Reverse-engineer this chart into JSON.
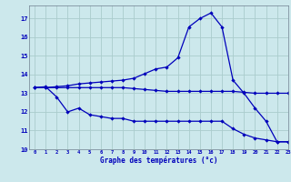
{
  "background_color": "#cce8ec",
  "grid_color": "#aacccc",
  "line_color": "#0000bb",
  "xlabel": "Graphe des températures (°c)",
  "xlim": [
    -0.5,
    23
  ],
  "ylim": [
    10,
    17.7
  ],
  "yticks": [
    10,
    11,
    12,
    13,
    14,
    15,
    16,
    17
  ],
  "xticks": [
    0,
    1,
    2,
    3,
    4,
    5,
    6,
    7,
    8,
    9,
    10,
    11,
    12,
    13,
    14,
    15,
    16,
    17,
    18,
    19,
    20,
    21,
    22,
    23
  ],
  "s1_x": [
    0,
    1,
    2,
    3,
    4,
    5,
    6,
    7,
    8,
    9,
    10,
    11,
    12,
    13,
    14,
    15,
    16,
    17,
    18,
    19,
    20,
    21,
    22,
    23
  ],
  "s1_y": [
    13.3,
    13.35,
    12.8,
    12.0,
    12.2,
    11.85,
    11.75,
    11.65,
    11.65,
    11.5,
    11.5,
    11.5,
    11.5,
    11.5,
    11.5,
    11.5,
    11.5,
    11.5,
    11.1,
    10.8,
    10.6,
    10.5,
    10.4,
    10.4
  ],
  "s2_x": [
    0,
    1,
    2,
    3,
    4,
    5,
    6,
    7,
    8,
    9,
    10,
    11,
    12,
    13,
    14,
    15,
    16,
    17,
    18,
    19,
    20,
    21,
    22,
    23
  ],
  "s2_y": [
    13.3,
    13.3,
    13.3,
    13.3,
    13.3,
    13.3,
    13.3,
    13.3,
    13.3,
    13.25,
    13.2,
    13.15,
    13.1,
    13.1,
    13.1,
    13.1,
    13.1,
    13.1,
    13.1,
    13.05,
    13.0,
    13.0,
    13.0,
    13.0
  ],
  "s3_x": [
    0,
    1,
    2,
    3,
    4,
    5,
    6,
    7,
    8,
    9,
    10,
    11,
    12,
    13,
    14,
    15,
    16,
    17,
    18,
    19,
    20,
    21,
    22,
    23
  ],
  "s3_y": [
    13.3,
    13.3,
    13.35,
    13.4,
    13.5,
    13.55,
    13.6,
    13.65,
    13.7,
    13.8,
    14.05,
    14.3,
    14.4,
    14.9,
    16.55,
    17.0,
    17.3,
    16.55,
    13.7,
    13.0,
    12.2,
    11.5,
    10.4,
    10.4
  ]
}
